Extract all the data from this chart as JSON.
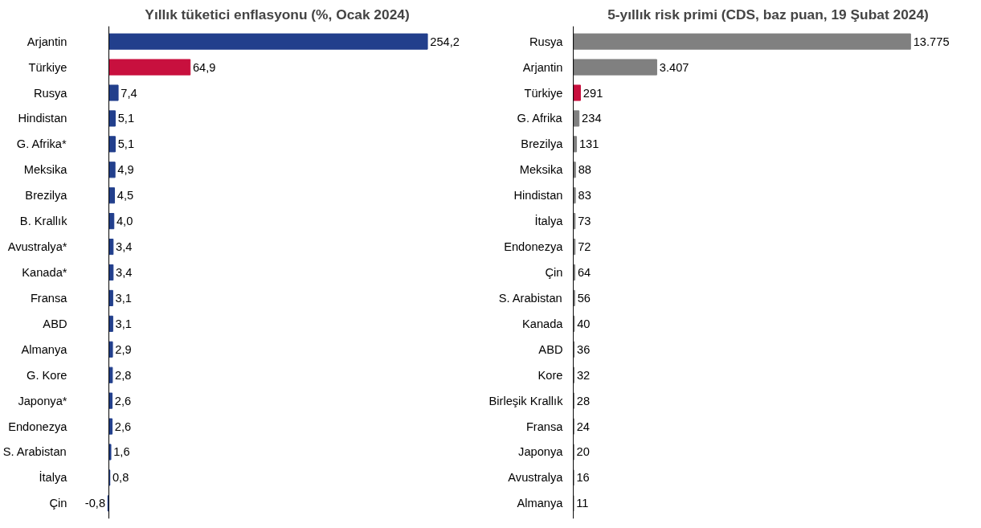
{
  "chart_data": [
    {
      "type": "bar",
      "orientation": "horizontal",
      "title": "Yıllık tüketici enflasyonu (%, Ocak 2024)",
      "categories": [
        "Arjantin",
        "Türkiye",
        "Rusya",
        "Hindistan",
        "G. Afrika*",
        "Meksika",
        "Brezilya",
        "B. Krallık",
        "Avustralya*",
        "Kanada*",
        "Fransa",
        "ABD",
        "Almanya",
        "G. Kore",
        "Japonya*",
        "Endonezya",
        "S. Arabistan",
        "İtalya",
        "Çin"
      ],
      "values": [
        254.2,
        64.9,
        7.4,
        5.1,
        5.1,
        4.9,
        4.5,
        4.0,
        3.4,
        3.4,
        3.1,
        3.1,
        2.9,
        2.8,
        2.6,
        2.6,
        1.6,
        0.8,
        -0.8
      ],
      "value_labels": [
        "254,2",
        "64,9",
        "7,4",
        "5,1",
        "5,1",
        "4,9",
        "4,5",
        "4,0",
        "3,4",
        "3,4",
        "3,1",
        "3,1",
        "2,9",
        "2,8",
        "2,6",
        "2,6",
        "1,6",
        "0,8",
        "-0,8"
      ],
      "colors": [
        "#223f8c",
        "#c8103e",
        "#223f8c",
        "#223f8c",
        "#223f8c",
        "#223f8c",
        "#223f8c",
        "#223f8c",
        "#223f8c",
        "#223f8c",
        "#223f8c",
        "#223f8c",
        "#223f8c",
        "#223f8c",
        "#223f8c",
        "#223f8c",
        "#223f8c",
        "#223f8c",
        "#223f8c"
      ],
      "grid": false,
      "tick_labels": "y"
    },
    {
      "type": "bar",
      "orientation": "horizontal",
      "title": "5-yıllık risk primi (CDS, baz puan, 19 Şubat 2024)",
      "categories": [
        "Rusya",
        "Arjantin",
        "Türkiye",
        "G. Afrika",
        "Brezilya",
        "Meksika",
        "Hindistan",
        "İtalya",
        "Endonezya",
        "Çin",
        "S. Arabistan",
        "Kanada",
        "ABD",
        "Kore",
        "Birleşik Krallık",
        "Fransa",
        "Japonya",
        "Avustralya",
        "Almanya"
      ],
      "values": [
        13775,
        3407,
        291,
        234,
        131,
        88,
        83,
        73,
        72,
        64,
        56,
        40,
        36,
        32,
        28,
        24,
        20,
        16,
        11
      ],
      "value_labels": [
        "13.775",
        "3.407",
        "291",
        "234",
        "131",
        "88",
        "83",
        "73",
        "72",
        "64",
        "56",
        "40",
        "36",
        "32",
        "28",
        "24",
        "20",
        "16",
        "11"
      ],
      "colors": [
        "#808080",
        "#808080",
        "#c8103e",
        "#808080",
        "#808080",
        "#808080",
        "#808080",
        "#808080",
        "#808080",
        "#808080",
        "#808080",
        "#808080",
        "#808080",
        "#808080",
        "#808080",
        "#808080",
        "#808080",
        "#808080",
        "#808080"
      ],
      "grid": false,
      "tick_labels": "y"
    }
  ]
}
